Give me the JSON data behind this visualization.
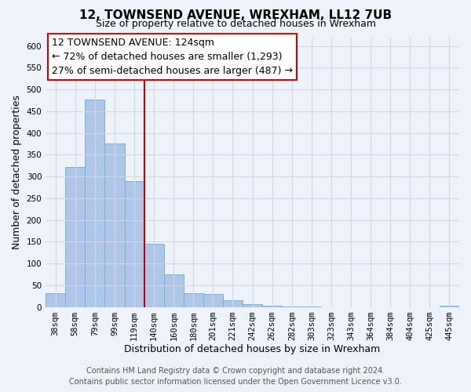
{
  "title": "12, TOWNSEND AVENUE, WREXHAM, LL12 7UB",
  "subtitle": "Size of property relative to detached houses in Wrexham",
  "xlabel": "Distribution of detached houses by size in Wrexham",
  "ylabel": "Number of detached properties",
  "bar_labels": [
    "38sqm",
    "58sqm",
    "79sqm",
    "99sqm",
    "119sqm",
    "140sqm",
    "160sqm",
    "180sqm",
    "201sqm",
    "221sqm",
    "242sqm",
    "262sqm",
    "282sqm",
    "303sqm",
    "323sqm",
    "343sqm",
    "364sqm",
    "384sqm",
    "404sqm",
    "425sqm",
    "445sqm"
  ],
  "bar_values": [
    32,
    322,
    476,
    375,
    290,
    145,
    75,
    32,
    29,
    16,
    7,
    2,
    1,
    1,
    0,
    0,
    0,
    0,
    0,
    0,
    2
  ],
  "bar_color": "#aec6e8",
  "bar_edge_color": "#7bafd4",
  "vline_x": 4.5,
  "vline_color": "#cc0000",
  "annotation_line1": "12 TOWNSEND AVENUE: 124sqm",
  "annotation_line2": "← 72% of detached houses are smaller (1,293)",
  "annotation_line3": "27% of semi-detached houses are larger (487) →",
  "ylim": [
    0,
    620
  ],
  "yticks": [
    0,
    50,
    100,
    150,
    200,
    250,
    300,
    350,
    400,
    450,
    500,
    550,
    600
  ],
  "footer_line1": "Contains HM Land Registry data © Crown copyright and database right 2024.",
  "footer_line2": "Contains public sector information licensed under the Open Government Licence v3.0.",
  "bg_color": "#eef2fa",
  "plot_bg_color": "#eef2fa",
  "title_fontsize": 11,
  "subtitle_fontsize": 9,
  "axis_label_fontsize": 9,
  "tick_fontsize": 7.5,
  "annotation_fontsize": 9,
  "footer_fontsize": 7,
  "grid_color": "#d0d8e8"
}
